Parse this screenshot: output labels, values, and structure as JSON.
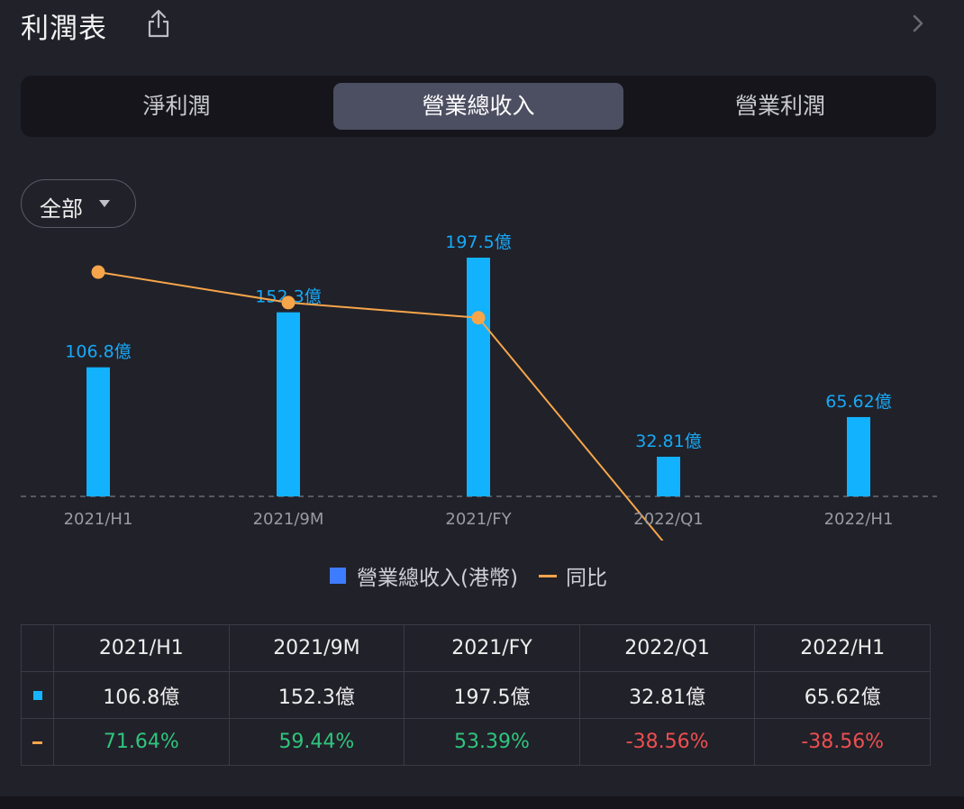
{
  "header": {
    "title": "利潤表",
    "share_icon": "share-icon",
    "next_icon": "chevron-right-icon"
  },
  "tabs": [
    {
      "label": "淨利潤",
      "active": false
    },
    {
      "label": "營業總收入",
      "active": true
    },
    {
      "label": "營業利潤",
      "active": false
    }
  ],
  "filter": {
    "label": "全部",
    "icon": "caret-down-icon"
  },
  "colors": {
    "bar": "#12b2ff",
    "line": "#f6a54a",
    "positive": "#2fc57d",
    "negative": "#ec4f4f",
    "legend_bar": "#3d7cff"
  },
  "chart_data": {
    "type": "bar",
    "categories": [
      "2021/H1",
      "2021/9M",
      "2021/FY",
      "2022/Q1",
      "2022/H1"
    ],
    "series": [
      {
        "name": "營業總收入(港幣)",
        "type": "bar",
        "values": [
          106.8,
          152.3,
          197.5,
          32.81,
          65.62
        ],
        "value_labels": [
          "106.8億",
          "152.3億",
          "197.5億",
          "32.81億",
          "65.62億"
        ]
      },
      {
        "name": "同比",
        "type": "line",
        "values": [
          71.64,
          59.44,
          53.39,
          -38.56,
          -38.56
        ],
        "value_labels": [
          "71.64%",
          "59.44%",
          "53.39%",
          "-38.56%",
          "-38.56%"
        ]
      }
    ],
    "legend": [
      "營業總收入(港幣)",
      "同比"
    ],
    "bar_ylim": [
      0,
      197.5
    ],
    "line_ylim": [
      -50,
      90
    ]
  },
  "table": {
    "headers": [
      "2021/H1",
      "2021/9M",
      "2021/FY",
      "2022/Q1",
      "2022/H1"
    ],
    "revenue_row": [
      "106.8億",
      "152.3億",
      "197.5億",
      "32.81億",
      "65.62億"
    ],
    "growth_row": [
      "71.64%",
      "59.44%",
      "53.39%",
      "-38.56%",
      "-38.56%"
    ]
  }
}
